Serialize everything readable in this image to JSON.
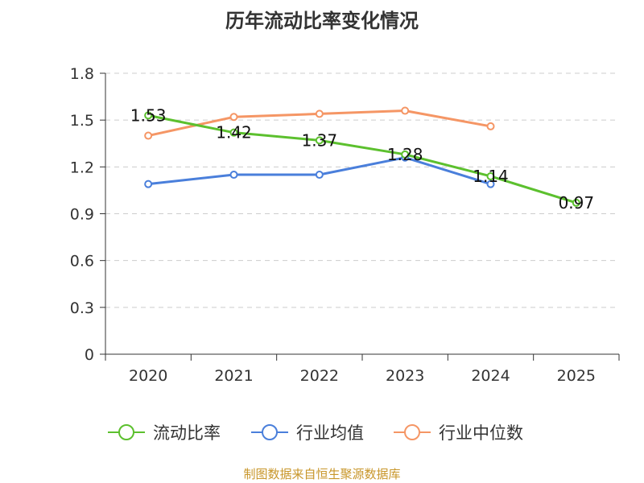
{
  "chart_data": {
    "type": "line",
    "title": "历年流动比率变化情况",
    "categories": [
      "2020",
      "2021",
      "2022",
      "2023",
      "2024",
      "2025"
    ],
    "ylim": [
      0,
      1.8
    ],
    "yticks": [
      "0",
      "0.3",
      "0.6",
      "0.9",
      "1.2",
      "1.5",
      "1.8"
    ],
    "grid": true,
    "legend_position": "bottom",
    "series": [
      {
        "name": "流动比率",
        "color": "#5cc02e",
        "values": [
          1.53,
          1.42,
          1.37,
          1.28,
          1.14,
          0.97
        ],
        "labels": [
          "1.53",
          "1.42",
          "1.37",
          "1.28",
          "1.14",
          "0.97"
        ]
      },
      {
        "name": "行业均值",
        "color": "#4a7fdb",
        "values": [
          1.09,
          1.15,
          1.15,
          1.26,
          1.09,
          null
        ]
      },
      {
        "name": "行业中位数",
        "color": "#f59665",
        "values": [
          1.4,
          1.52,
          1.54,
          1.56,
          1.46,
          null
        ]
      }
    ]
  },
  "footer": {
    "source": "制图数据来自恒生聚源数据库"
  }
}
